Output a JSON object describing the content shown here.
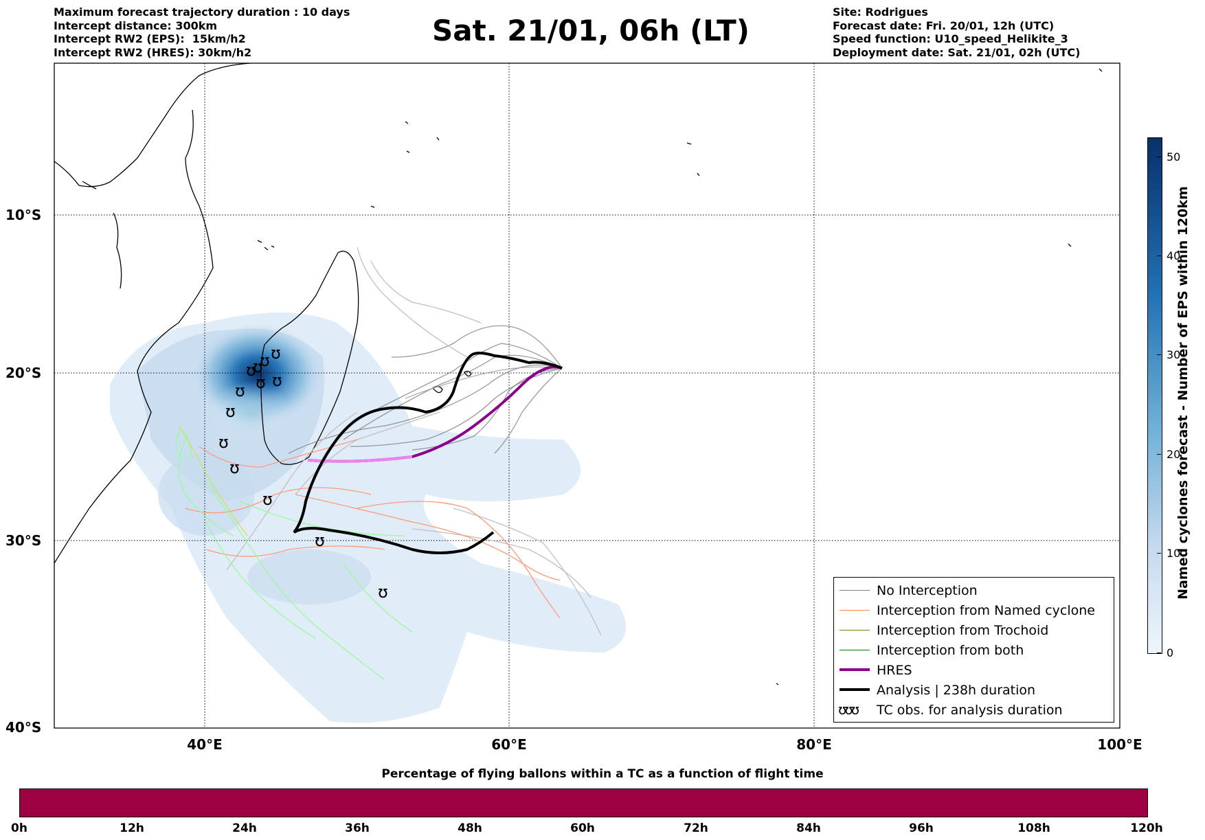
{
  "header_left": [
    "Maximum forecast trajectory duration : 10 days",
    "Intercept distance: 300km",
    "Intercept RW2 (EPS):  15km/h2",
    "Intercept RW2 (HRES): 30km/h2"
  ],
  "title": "Sat. 21/01, 06h (LT)",
  "header_right": [
    "Site: Rodrigues",
    "Forecast date: Fri. 20/01, 12h (UTC)",
    "Speed function: U10_speed_Helikite_3",
    "Deployment date: Sat. 21/01, 02h (UTC)"
  ],
  "map": {
    "lon_range": [
      30,
      100
    ],
    "lat_range": [
      -40,
      0
    ],
    "lat_labels": [
      "10°S",
      "20°S",
      "30°S",
      "40°S"
    ],
    "lon_labels": [
      "40°E",
      "60°E",
      "80°E",
      "100°E"
    ],
    "colors": {
      "no_interception": "#808080",
      "named_cyclone": "#ff7f50",
      "trochoid": "#808000",
      "both": "#008000",
      "hres": "#8b008b",
      "analysis": "#000000"
    }
  },
  "legend": {
    "items": [
      {
        "label": "No Interception",
        "color": "#808080"
      },
      {
        "label": "Interception from Named cyclone",
        "color": "#ff7f50"
      },
      {
        "label": "Interception from Trochoid",
        "color": "#808000"
      },
      {
        "label": "Interception from both",
        "color": "#008000"
      },
      {
        "label": "HRES",
        "color": "#8b008b"
      },
      {
        "label": "Analysis | 238h duration",
        "color": "#000000"
      }
    ],
    "tc_symbol": "ʊʊʊ",
    "tc_label": "TC obs. for analysis duration"
  },
  "right_colorbar": {
    "label": "Named cyclones forecast - Number of EPS within 120km",
    "ticks": [
      "0",
      "10",
      "20",
      "30",
      "40",
      "50"
    ]
  },
  "bottom_colorbar": {
    "title": "Percentage of flying ballons within a TC as a function of flight time",
    "ticks": [
      "0h",
      "12h",
      "24h",
      "36h",
      "48h",
      "60h",
      "72h",
      "84h",
      "96h",
      "108h",
      "120h"
    ],
    "color": "#9e0142"
  }
}
